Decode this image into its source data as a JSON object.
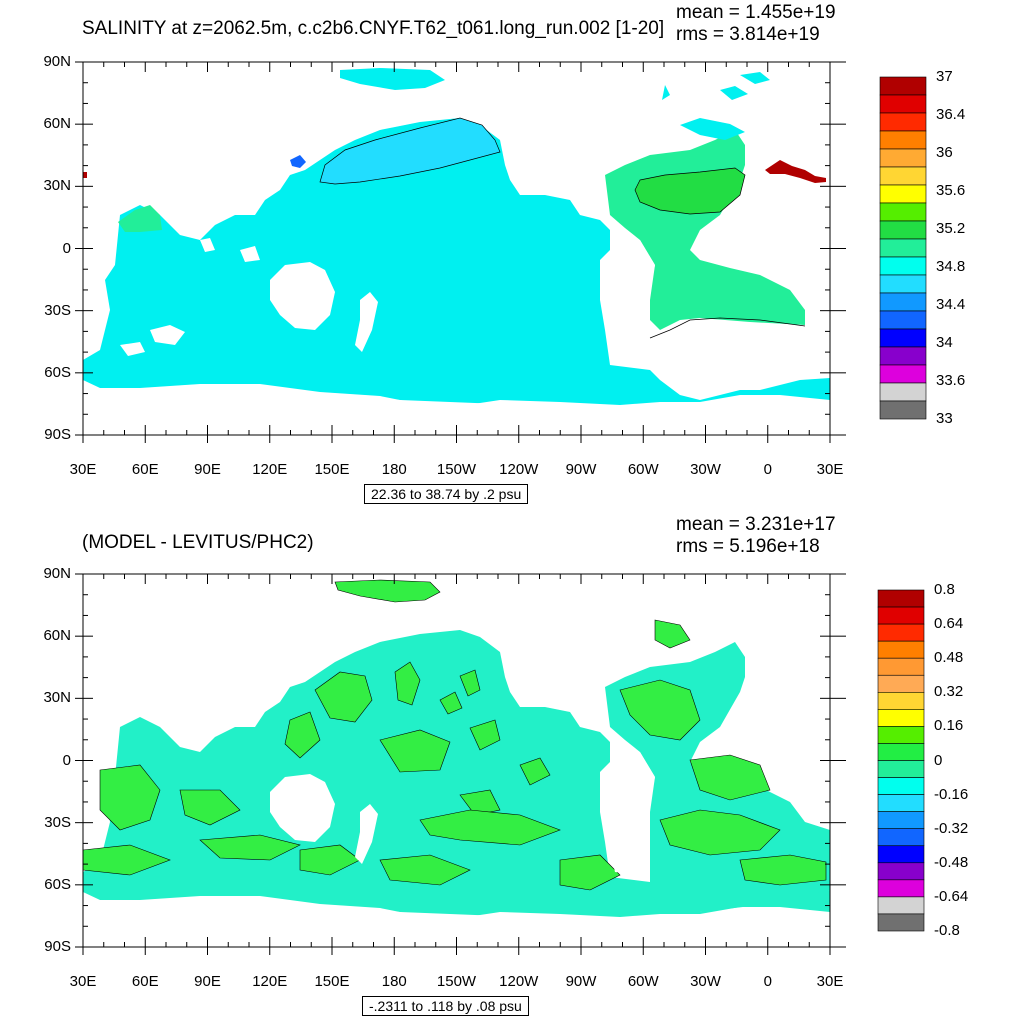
{
  "panels": [
    {
      "id": "top",
      "title": "SALINITY at z=2062.5m, c.c2b6.CNYF.T62_t061.long_run.002 [1-20]",
      "mean_text": "mean = 1.455e+19",
      "rms_text": "rms = 3.814e+19",
      "info_text": "22.36 to 38.74 by .2 psu",
      "lat_labels": [
        "90N",
        "60N",
        "30N",
        "0",
        "30S",
        "60S",
        "90S"
      ],
      "lon_labels": [
        "30E",
        "60E",
        "90E",
        "120E",
        "150E",
        "180",
        "150W",
        "120W",
        "90W",
        "60W",
        "30W",
        "0",
        "30E"
      ],
      "colorbar_labels": [
        "37",
        "36.4",
        "36",
        "35.6",
        "35.2",
        "34.8",
        "34.4",
        "34",
        "33.6",
        "33"
      ],
      "colorbar_colors": [
        "#b00000",
        "#e00000",
        "#ff2a00",
        "#ff7f00",
        "#ffaa33",
        "#ffd633",
        "#ffff00",
        "#55ee00",
        "#22dd44",
        "#22ee99",
        "#00ffee",
        "#22ddff",
        "#1199ff",
        "#1166ff",
        "#0000ff",
        "#8800cc",
        "#dd00dd",
        "#d3d3d3",
        "#707070"
      ],
      "ocean_color": "#00f0f0",
      "regions": [
        {
          "name": "north-pacific-region",
          "color": "#22ddff"
        },
        {
          "name": "north-atlantic-region",
          "color": "#22ee99"
        },
        {
          "name": "south-atlantic-region",
          "color": "#22ee99"
        },
        {
          "name": "subtropical-atlantic-region",
          "color": "#22dd44"
        },
        {
          "name": "mediterranean-outflow-region",
          "color": "#b00000"
        },
        {
          "name": "japan-sea-region",
          "color": "#1166ff"
        }
      ]
    },
    {
      "id": "bottom",
      "title": "(MODEL - LEVITUS/PHC2)",
      "mean_text": "mean = 3.231e+17",
      "rms_text": "rms = 5.196e+18",
      "info_text": "-.2311 to .118 by .08 psu",
      "lat_labels": [
        "90N",
        "60N",
        "30N",
        "0",
        "30S",
        "60S",
        "90S"
      ],
      "lon_labels": [
        "30E",
        "60E",
        "90E",
        "120E",
        "150E",
        "180",
        "150W",
        "120W",
        "90W",
        "60W",
        "30W",
        "0",
        "30E"
      ],
      "colorbar_labels": [
        "0.8",
        "0.64",
        "0.48",
        "0.32",
        "0.16",
        "0",
        "-0.16",
        "-0.32",
        "-0.48",
        "-0.64",
        "-0.8"
      ],
      "colorbar_colors": [
        "#b00000",
        "#e00000",
        "#ff2a00",
        "#ff7f00",
        "#ff9933",
        "#ffaa55",
        "#ffd633",
        "#ffff00",
        "#55ee00",
        "#22ee44",
        "#22ee99",
        "#00ffee",
        "#22ddff",
        "#1199ff",
        "#1166ff",
        "#0000ff",
        "#8800cc",
        "#dd00dd",
        "#d3d3d3",
        "#707070"
      ],
      "ocean_color": "#22f0c8",
      "positive_color": "#33ee44"
    }
  ]
}
